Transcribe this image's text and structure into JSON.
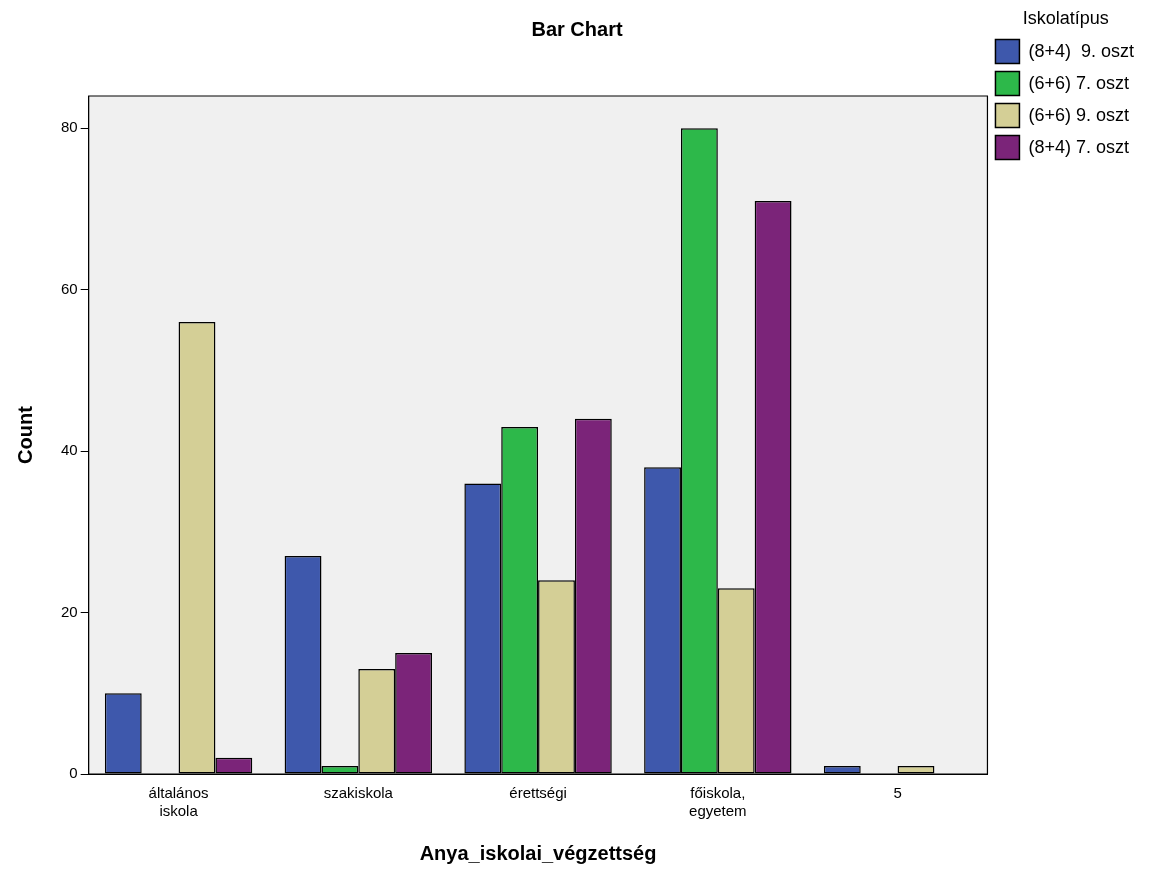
{
  "chart_data": {
    "type": "bar",
    "title": "Bar Chart",
    "xlabel": "Anya_iskolai_végzettség",
    "ylabel": "Count",
    "legend_title": "Iskolatípus",
    "categories": [
      "általános iskola",
      "szakiskola",
      "érettségi",
      "főiskola, egyetem",
      "5"
    ],
    "series": [
      {
        "name": "(8+4)  9. oszt",
        "color": "#3e58ac",
        "values": [
          10,
          27,
          36,
          38,
          1
        ]
      },
      {
        "name": "(6+6) 7. oszt",
        "color": "#2db84a",
        "values": [
          0,
          1,
          43,
          80,
          0
        ]
      },
      {
        "name": "(6+6) 9. oszt",
        "color": "#d4cf96",
        "values": [
          56,
          13,
          24,
          23,
          1
        ]
      },
      {
        "name": "(8+4) 7. oszt",
        "color": "#7b2479",
        "values": [
          2,
          15,
          44,
          71,
          0
        ]
      }
    ],
    "ylim": [
      0,
      84
    ],
    "yticks": [
      0,
      20,
      40,
      60,
      80
    ],
    "grid": false,
    "legend": "right"
  }
}
